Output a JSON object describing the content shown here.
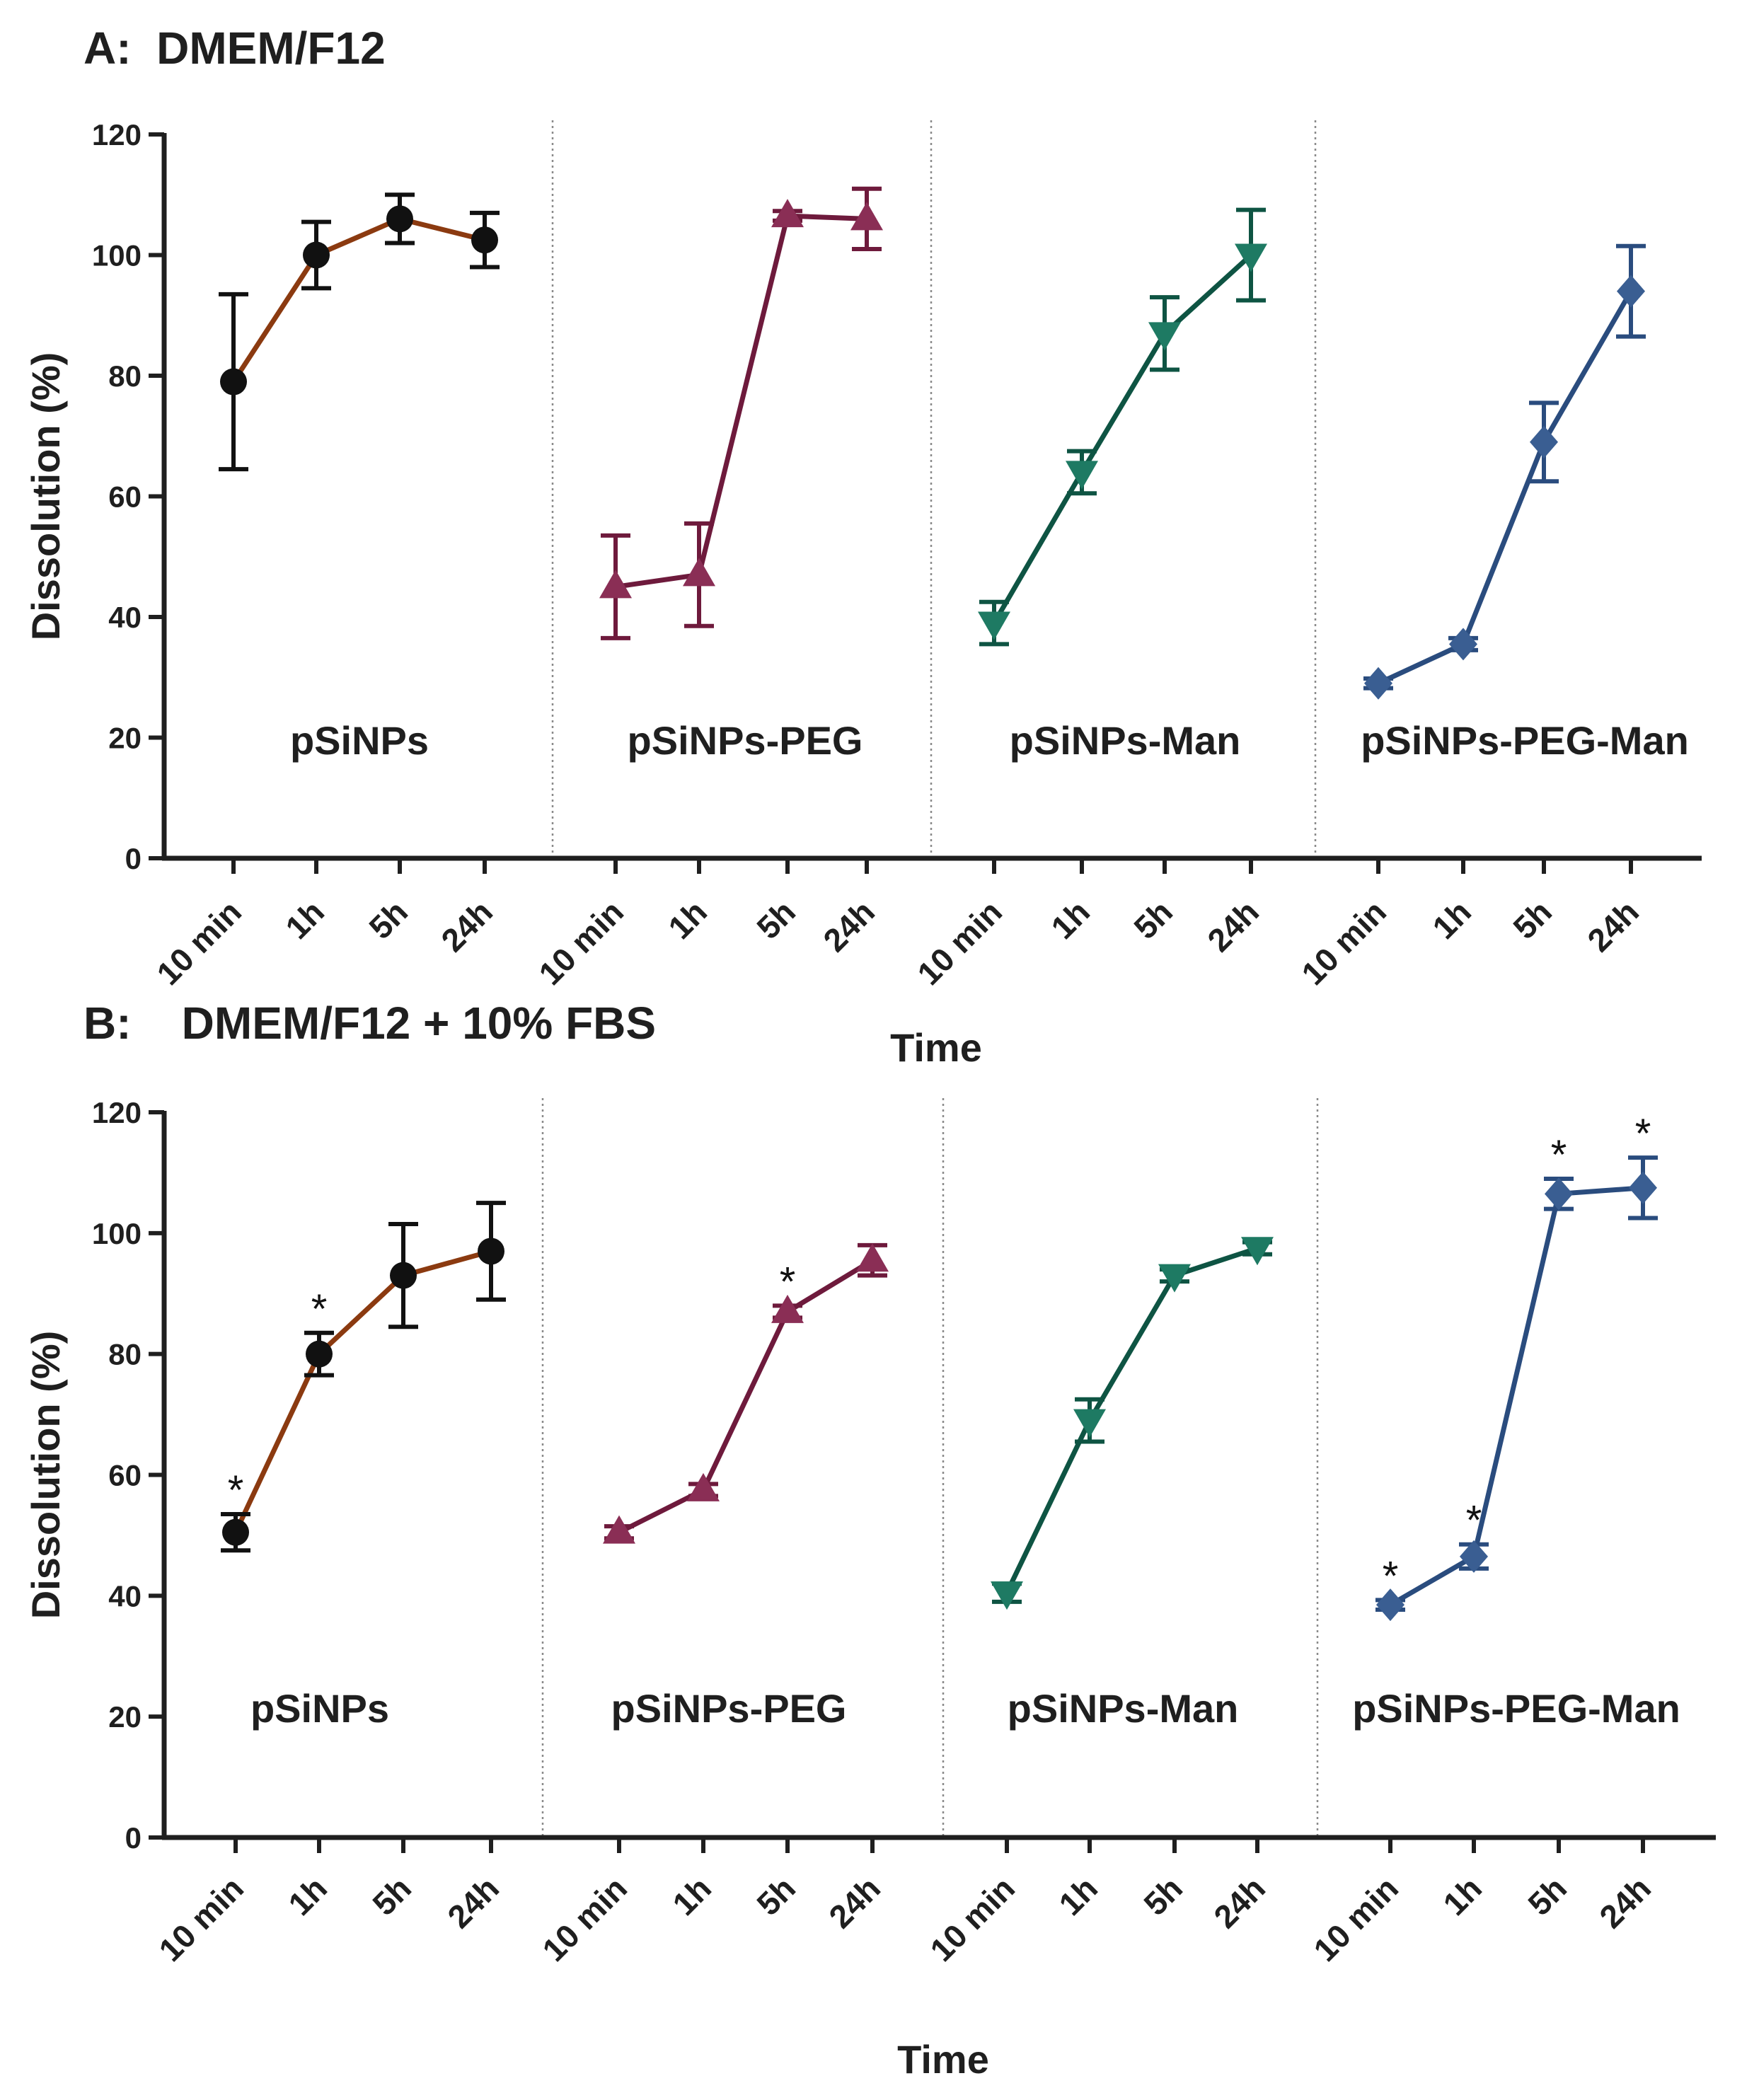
{
  "chart_data": [
    {
      "type": "line",
      "panel": "A",
      "title": "A:  DMEM/F12",
      "xlabel": "Time",
      "ylabel": "Dissolution (%)",
      "ylim": [
        0,
        120
      ],
      "yticks": [
        0,
        20,
        40,
        60,
        80,
        100,
        120
      ],
      "categories": [
        "10 min",
        "1h",
        "5h",
        "24h"
      ],
      "series": [
        {
          "name": "pSiNPs",
          "color": "#8B3A10",
          "marker": "circle",
          "marker_color": "#111111",
          "values": [
            79,
            100,
            106,
            102.5
          ],
          "errors": [
            14.5,
            5.5,
            4,
            4.5
          ],
          "significant": [
            false,
            false,
            false,
            false
          ]
        },
        {
          "name": "pSiNPs-PEG",
          "color": "#6E1A3C",
          "marker": "triangle-up",
          "marker_color": "#8A2E55",
          "values": [
            45,
            47,
            106.5,
            106
          ],
          "errors": [
            8.5,
            8.5,
            0.8,
            5
          ],
          "significant": [
            false,
            false,
            false,
            false
          ]
        },
        {
          "name": "pSiNPs-Man",
          "color": "#0E5443",
          "marker": "triangle-down",
          "marker_color": "#1E7A63",
          "values": [
            39,
            64,
            87,
            100
          ],
          "errors": [
            3.5,
            3.5,
            6,
            7.5
          ],
          "significant": [
            false,
            false,
            false,
            false
          ]
        },
        {
          "name": "pSiNPs-PEG-Man",
          "color": "#2A4C7E",
          "marker": "diamond",
          "marker_color": "#3A5E92",
          "values": [
            29,
            35.5,
            69,
            94
          ],
          "errors": [
            0.8,
            1,
            6.5,
            7.5
          ],
          "significant": [
            false,
            false,
            false,
            false
          ]
        }
      ]
    },
    {
      "type": "line",
      "panel": "B",
      "title": "B:    DMEM/F12 + 10% FBS",
      "xlabel": "Time",
      "ylabel": "Dissolution (%)",
      "ylim": [
        0,
        120
      ],
      "yticks": [
        0,
        20,
        40,
        60,
        80,
        100,
        120
      ],
      "categories": [
        "10 min",
        "1h",
        "5h",
        "24h"
      ],
      "significance_marker": "*",
      "series": [
        {
          "name": "pSiNPs",
          "color": "#8B3A10",
          "marker": "circle",
          "marker_color": "#111111",
          "values": [
            50.5,
            80,
            93,
            97
          ],
          "errors": [
            3,
            3.5,
            8.5,
            8
          ],
          "significant": [
            true,
            true,
            false,
            false
          ]
        },
        {
          "name": "pSiNPs-PEG",
          "color": "#6E1A3C",
          "marker": "triangle-up",
          "marker_color": "#8A2E55",
          "values": [
            50.5,
            57.5,
            87,
            95.5
          ],
          "errors": [
            1,
            1,
            1,
            2.5
          ],
          "significant": [
            false,
            false,
            true,
            false
          ]
        },
        {
          "name": "pSiNPs-Man",
          "color": "#0E5443",
          "marker": "triangle-down",
          "marker_color": "#1E7A63",
          "values": [
            40.5,
            69,
            93,
            97.5
          ],
          "errors": [
            1.5,
            3.5,
            1,
            1
          ],
          "significant": [
            false,
            false,
            false,
            false
          ]
        },
        {
          "name": "pSiNPs-PEG-Man",
          "color": "#2A4C7E",
          "marker": "diamond",
          "marker_color": "#3A5E92",
          "values": [
            38.5,
            46.5,
            106.5,
            107.5
          ],
          "errors": [
            0.8,
            2,
            2.5,
            5
          ],
          "significant": [
            true,
            true,
            true,
            true
          ]
        }
      ]
    }
  ]
}
